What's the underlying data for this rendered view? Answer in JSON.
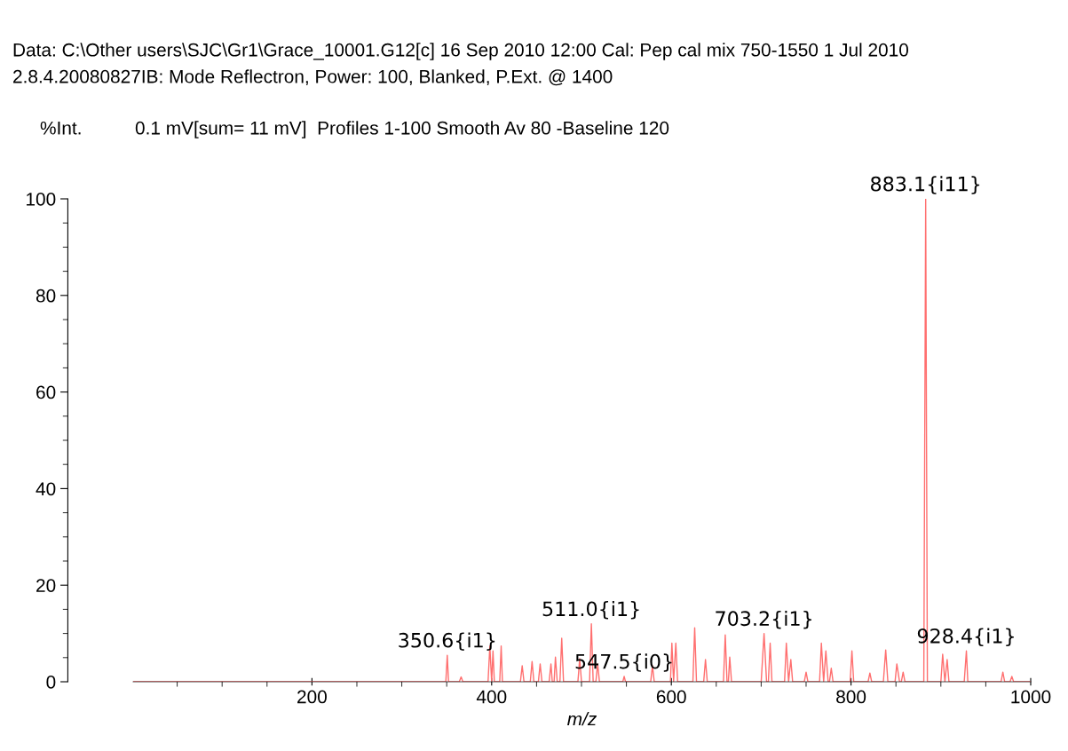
{
  "chart_data": {
    "type": "line",
    "title": "Data: C:\\Other users\\SJC\\Gr1\\Grace_10001.G12[c] 16 Sep 2010 12:00 Cal: Pep cal mix 750-1550 1 Jul 2010",
    "subtitle": "2.8.4.20080827IB: Mode Reflectron, Power: 100, Blanked, P.Ext. @ 1400",
    "ylabel": "%Int.",
    "annotations": [
      "0.1 mV[sum= 11 mV]  Profiles 1-100 Smooth Av 80 -Baseline 120",
      {
        "text": "350.6{i1}",
        "x": 350.6,
        "y": 5.5
      },
      {
        "text": "511.0{i1}",
        "x": 511.0,
        "y": 12
      },
      {
        "text": "547.5{i0}",
        "x": 547.5,
        "y": 1.1
      },
      {
        "text": "703.2{i1}",
        "x": 703.2,
        "y": 10
      },
      {
        "text": "883.1{i11}",
        "x": 883.1,
        "y": 100
      },
      {
        "text": "928.4{i1}",
        "x": 928.4,
        "y": 6.4
      }
    ],
    "xlabel": "m/z",
    "series": [
      {
        "color": "#ff6f6f",
        "x": [
          1,
          349,
          350.6,
          352,
          364,
          366,
          368,
          396,
          398,
          400,
          401.5,
          403,
          404.5,
          409,
          410.6,
          412,
          432,
          434,
          436,
          443,
          445,
          447,
          452,
          454,
          456,
          464,
          466,
          467.5,
          469.5,
          471,
          473,
          476,
          478,
          480,
          496,
          498,
          500,
          509,
          511.0,
          513,
          516,
          518,
          520,
          546,
          547.5,
          549,
          577,
          579,
          581,
          599,
          600.6,
          602.5,
          605,
          607,
          624,
          626,
          628,
          636,
          638,
          640,
          658,
          660,
          662,
          663.5,
          665,
          667,
          700,
          703.2,
          706,
          708,
          710,
          712,
          726,
          728,
          730.5,
          733,
          735,
          748,
          750,
          752,
          765,
          767,
          769.5,
          772,
          774.5,
          776,
          778,
          780,
          799,
          801,
          803,
          819,
          821,
          823,
          836,
          838.6,
          841,
          849,
          851,
          854,
          856,
          858,
          860,
          881,
          883.1,
          885,
          900,
          902,
          904.5,
          907,
          909,
          926,
          928.4,
          930,
          967,
          969,
          971,
          977,
          979,
          981,
          1000
        ],
        "values": [
          0,
          0,
          5.5,
          0,
          0,
          1,
          0,
          0,
          7.4,
          0,
          6.4,
          0,
          0,
          0,
          7.4,
          0,
          0,
          3.3,
          0,
          0,
          4.2,
          0,
          0,
          3.7,
          0,
          0,
          3.7,
          0,
          0,
          5.1,
          0,
          0,
          9,
          0,
          0,
          4.8,
          0,
          0,
          12,
          0,
          0,
          3.7,
          0,
          0,
          1.1,
          0,
          0,
          3.3,
          0,
          0,
          8,
          0,
          8,
          0,
          0,
          11.2,
          0,
          0,
          4.6,
          0,
          0,
          9.7,
          0,
          0,
          5.1,
          0,
          0,
          10,
          0,
          0,
          8,
          0,
          0,
          8,
          0,
          4.6,
          0,
          0,
          2,
          0,
          0,
          8,
          0,
          6.4,
          0,
          0,
          2.8,
          0,
          0,
          6.4,
          0,
          0,
          1.8,
          0,
          0,
          6.6,
          0,
          0,
          3.7,
          0,
          0,
          2,
          0,
          0,
          100,
          0,
          0,
          5.7,
          0,
          4.6,
          0,
          0,
          6.4,
          0,
          0,
          2,
          0,
          0,
          1.1,
          0,
          0
        ]
      }
    ],
    "xlim": [
      1,
      1000
    ],
    "xticks": [
      200,
      400,
      600,
      800,
      1000
    ],
    "ylim": [
      0,
      100
    ],
    "yticks": [
      0,
      20,
      40,
      60,
      80,
      100
    ],
    "grid": false,
    "legend": false,
    "marker": "none",
    "line_style": "solid"
  }
}
